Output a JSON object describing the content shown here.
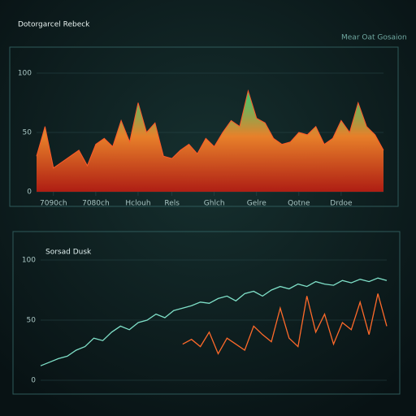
{
  "chart_data": [
    {
      "type": "area",
      "title": "Dotorgarcel Rebeck",
      "subtitle": "Mear Oat Gosaion",
      "x": [
        0,
        1,
        2,
        3,
        4,
        5,
        6,
        7,
        8,
        9,
        10,
        11,
        12,
        13,
        14,
        15,
        16,
        17,
        18,
        19,
        20,
        21,
        22,
        23,
        24,
        25,
        26,
        27,
        28,
        29,
        30,
        31,
        32,
        33,
        34,
        35,
        36,
        37,
        38,
        39,
        40,
        41
      ],
      "series": [
        {
          "name": "Rebeck",
          "color": "#ff5a2a",
          "values": [
            30,
            55,
            20,
            25,
            30,
            35,
            22,
            40,
            45,
            38,
            60,
            42,
            75,
            50,
            58,
            30,
            28,
            35,
            40,
            32,
            45,
            38,
            50,
            60,
            55,
            85,
            62,
            58,
            45,
            40,
            42,
            50,
            48,
            55,
            40,
            45,
            60,
            50,
            75,
            55,
            48,
            35
          ]
        }
      ],
      "xlim": [
        0,
        41
      ],
      "xticks": [
        {
          "value": 2,
          "label": "7090ch"
        },
        {
          "value": 7,
          "label": "7080ch"
        },
        {
          "value": 12,
          "label": "Hclouh"
        },
        {
          "value": 16,
          "label": "Rels"
        },
        {
          "value": 21,
          "label": "Ghlch"
        },
        {
          "value": 26,
          "label": "Gelre"
        },
        {
          "value": 31,
          "label": "Qotne"
        },
        {
          "value": 36,
          "label": "Drdoe"
        }
      ],
      "ylim": [
        0,
        100
      ],
      "yticks": [
        0,
        50,
        100
      ],
      "grid": true
    },
    {
      "type": "line",
      "title": "Sorsad Dusk",
      "x": [
        0,
        1,
        2,
        3,
        4,
        5,
        6,
        7,
        8,
        9,
        10,
        11,
        12,
        13,
        14,
        15,
        16,
        17,
        18,
        19,
        20,
        21,
        22,
        23,
        24,
        25,
        26,
        27,
        28,
        29,
        30,
        31,
        32,
        33,
        34,
        35,
        36,
        37,
        38,
        39
      ],
      "series": [
        {
          "name": "Sorsad",
          "color": "#7fe0c8",
          "values": [
            12,
            15,
            18,
            20,
            25,
            28,
            35,
            33,
            40,
            45,
            42,
            48,
            50,
            55,
            52,
            58,
            60,
            62,
            65,
            64,
            68,
            70,
            66,
            72,
            74,
            70,
            75,
            78,
            76,
            80,
            78,
            82,
            80,
            79,
            83,
            81,
            84,
            82,
            85,
            83
          ]
        },
        {
          "name": "Dusk",
          "color": "#ff6a2a",
          "values": [
            null,
            null,
            null,
            null,
            null,
            null,
            null,
            null,
            null,
            null,
            null,
            null,
            null,
            null,
            null,
            null,
            30,
            34,
            28,
            40,
            22,
            35,
            30,
            25,
            45,
            38,
            32,
            60,
            35,
            28,
            70,
            40,
            55,
            30,
            48,
            42,
            65,
            38,
            72,
            45
          ]
        }
      ],
      "xlim": [
        0,
        39
      ],
      "ylim": [
        0,
        100
      ],
      "yticks": [
        0,
        50,
        100
      ],
      "grid": true
    }
  ]
}
